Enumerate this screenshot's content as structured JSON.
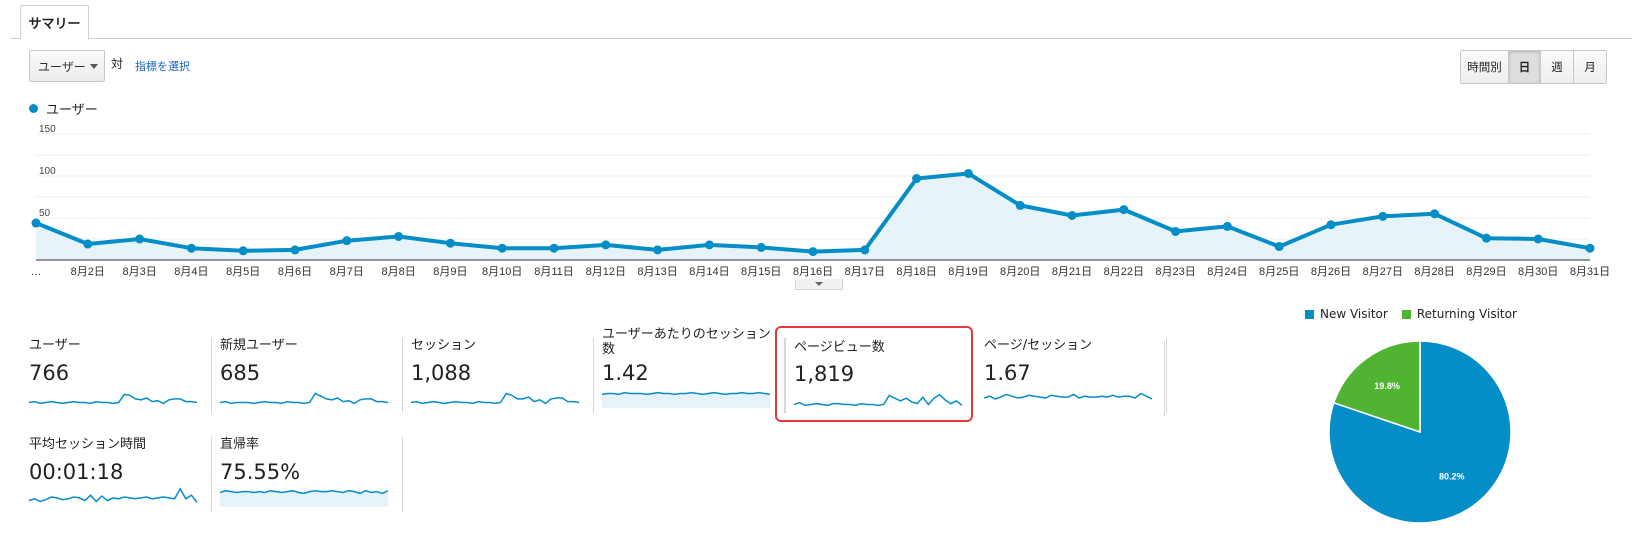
{
  "tabs": [
    {
      "label": "サマリー"
    }
  ],
  "controls": {
    "metric_select": "ユーザー",
    "versus": "対",
    "choose_metric": "指標を選択",
    "granularity": [
      "時間別",
      "日",
      "週",
      "月"
    ],
    "granularity_selected": "日"
  },
  "colors": {
    "primary": "#058dc7",
    "secondary": "#50b432",
    "highlight": "#e53935"
  },
  "chart_data": [
    {
      "type": "line",
      "title": "",
      "series": [
        {
          "name": "ユーザー",
          "values": [
            44,
            19,
            25,
            14,
            11,
            12,
            23,
            28,
            20,
            14,
            14,
            18,
            12,
            18,
            15,
            10,
            12,
            97,
            103,
            65,
            53,
            60,
            34,
            40,
            16,
            42,
            52,
            55,
            26,
            25,
            14
          ]
        }
      ],
      "x_labels": [
        "…",
        "8月2日",
        "8月3日",
        "8月4日",
        "8月5日",
        "8月6日",
        "8月7日",
        "8月8日",
        "8月9日",
        "8月10日",
        "8月11日",
        "8月12日",
        "8月13日",
        "8月14日",
        "8月15日",
        "8月16日",
        "8月17日",
        "8月18日",
        "8月19日",
        "8月20日",
        "8月21日",
        "8月22日",
        "8月23日",
        "8月24日",
        "8月25日",
        "8月26日",
        "8月27日",
        "8月28日",
        "8月29日",
        "8月30日",
        "8月31日"
      ],
      "y_ticks": [
        "150",
        "100",
        "50"
      ],
      "ylim": [
        0,
        150
      ],
      "grid": true
    },
    {
      "type": "pie",
      "title": "",
      "slices": [
        {
          "name": "New Visitor",
          "value": 80.2,
          "label": "80.2%",
          "color": "#058dc7"
        },
        {
          "name": "Returning Visitor",
          "value": 19.8,
          "label": "19.8%",
          "color": "#50b432"
        }
      ],
      "legend": "top"
    }
  ],
  "metrics": [
    {
      "label": "ユーザー",
      "value": "766",
      "spark": [
        5,
        6,
        4,
        5,
        6,
        5,
        4,
        5,
        6,
        5,
        5,
        4,
        6,
        5,
        5,
        4,
        5,
        14,
        13,
        9,
        8,
        10,
        6,
        7,
        4,
        8,
        9,
        9,
        6,
        6,
        5
      ],
      "filled": false
    },
    {
      "label": "新規ユーザー",
      "value": "685",
      "spark": [
        5,
        6,
        4,
        5,
        5,
        5,
        4,
        5,
        6,
        5,
        5,
        4,
        6,
        5,
        5,
        4,
        5,
        15,
        12,
        9,
        8,
        10,
        6,
        7,
        4,
        8,
        9,
        9,
        6,
        6,
        5
      ],
      "filled": false
    },
    {
      "label": "セッション",
      "value": "1,088",
      "spark": [
        5,
        6,
        4,
        5,
        6,
        5,
        4,
        5,
        6,
        5,
        5,
        4,
        6,
        5,
        5,
        4,
        5,
        15,
        13,
        9,
        9,
        11,
        6,
        8,
        4,
        9,
        10,
        10,
        6,
        6,
        5
      ],
      "filled": false
    },
    {
      "label": "ユーザーあたりのセッション数",
      "value": "1.42",
      "spark": [
        14,
        15,
        15,
        14,
        16,
        15,
        15,
        15,
        14,
        15,
        16,
        15,
        15,
        14,
        15,
        15,
        16,
        15,
        14,
        15,
        16,
        15,
        14,
        15,
        15,
        16,
        15,
        15,
        16,
        15,
        14
      ],
      "filled": true
    },
    {
      "label": "ページビュー数",
      "value": "1,819",
      "spark": [
        5,
        7,
        4,
        5,
        6,
        5,
        4,
        6,
        6,
        5,
        5,
        4,
        6,
        5,
        5,
        4,
        5,
        15,
        12,
        9,
        12,
        8,
        6,
        13,
        5,
        12,
        16,
        10,
        6,
        9,
        4
      ],
      "filled": false
    },
    {
      "label": "ページ/セッション",
      "value": "1.67",
      "spark": [
        10,
        12,
        9,
        11,
        14,
        12,
        10,
        11,
        13,
        12,
        11,
        10,
        13,
        12,
        11,
        11,
        14,
        10,
        12,
        11,
        11,
        12,
        11,
        13,
        11,
        12,
        12,
        10,
        15,
        12,
        9
      ],
      "filled": false
    },
    {
      "label": "平均セッション時間",
      "value": "00:01:18",
      "spark": [
        6,
        8,
        5,
        7,
        10,
        9,
        7,
        8,
        10,
        9,
        6,
        12,
        5,
        11,
        6,
        9,
        8,
        10,
        9,
        8,
        9,
        10,
        8,
        9,
        10,
        9,
        8,
        19,
        8,
        12,
        4
      ],
      "filled": false
    },
    {
      "label": "直帰率",
      "value": "75.55%",
      "spark": [
        15,
        17,
        16,
        15,
        16,
        16,
        15,
        16,
        15,
        17,
        16,
        15,
        16,
        17,
        15,
        14,
        16,
        17,
        16,
        16,
        17,
        16,
        15,
        17,
        16,
        14,
        17,
        15,
        16,
        14,
        17
      ],
      "filled": true
    }
  ]
}
